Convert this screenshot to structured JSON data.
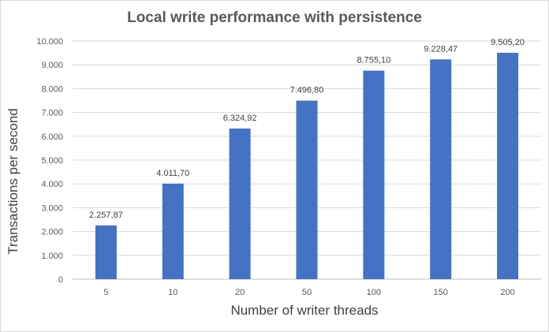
{
  "chart_data": {
    "type": "bar",
    "title": "Local write performance with persistence",
    "xlabel": "Number of writer threads",
    "ylabel": "Transactions per second",
    "categories": [
      "5",
      "10",
      "20",
      "50",
      "100",
      "150",
      "200"
    ],
    "values": [
      2257.87,
      4011.7,
      6324.92,
      7496.8,
      8755.1,
      9228.47,
      9505.2
    ],
    "value_labels": [
      "2.257,87",
      "4.011,70",
      "6.324,92",
      "7.496,80",
      "8.755,10",
      "9.228,47",
      "9.505,20"
    ],
    "ylim": [
      0,
      10000
    ],
    "yticks": [
      0,
      1000,
      2000,
      3000,
      4000,
      5000,
      6000,
      7000,
      8000,
      9000,
      10000
    ],
    "ytick_labels": [
      "0",
      "1.000",
      "2.000",
      "3.000",
      "4.000",
      "5.000",
      "6.000",
      "7.000",
      "8.000",
      "9.000",
      "10.000"
    ],
    "grid": true,
    "legend": false,
    "bar_color": "#4472c4"
  }
}
